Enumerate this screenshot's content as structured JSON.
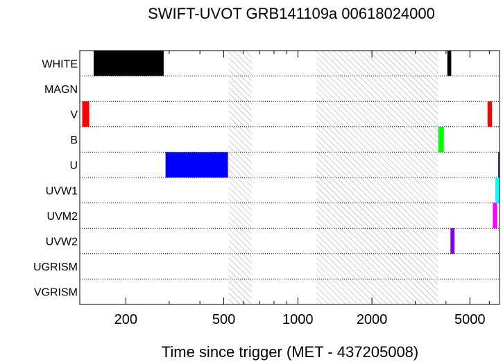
{
  "chart_data": {
    "type": "bar",
    "orientation": "horizontal-timeline",
    "title": "SWIFT-UVOT GRB141109a 00618024000",
    "xlabel": "Time since trigger (MET - 437205008)",
    "xscale": "log",
    "xlim": [
      130,
      6600
    ],
    "x_ticks": [
      {
        "value": 200,
        "label": "200"
      },
      {
        "value": 500,
        "label": "500"
      },
      {
        "value": 1000,
        "label": "1000"
      },
      {
        "value": 2000,
        "label": "2000"
      },
      {
        "value": 5000,
        "label": "5000"
      }
    ],
    "categories": [
      "WHITE",
      "MAGN",
      "V",
      "B",
      "U",
      "UVW1",
      "UVM2",
      "UVW2",
      "UGRISM",
      "VGRISM"
    ],
    "grid": "dotted row separators",
    "gaps": [
      {
        "start": 525,
        "end": 650
      },
      {
        "start": 1190,
        "end": 3720
      }
    ],
    "exposures": [
      {
        "filter": "WHITE",
        "start": 148,
        "end": 285,
        "color": "#000000"
      },
      {
        "filter": "WHITE",
        "start": 4050,
        "end": 4200,
        "color": "#000000"
      },
      {
        "filter": "V",
        "start": 133,
        "end": 142,
        "color": "#ff0000"
      },
      {
        "filter": "V",
        "start": 5900,
        "end": 6150,
        "color": "#ff0000"
      },
      {
        "filter": "B",
        "start": 3720,
        "end": 3920,
        "color": "#00ff00"
      },
      {
        "filter": "U",
        "start": 290,
        "end": 520,
        "color": "#0000ff"
      },
      {
        "filter": "U",
        "start": 6520,
        "end": 6600,
        "color": "#1a1060"
      },
      {
        "filter": "UVW1",
        "start": 6350,
        "end": 6600,
        "color": "#00ffff"
      },
      {
        "filter": "UVM2",
        "start": 6200,
        "end": 6450,
        "color": "#ff00ff"
      },
      {
        "filter": "UVW2",
        "start": 4170,
        "end": 4330,
        "color": "#8000ff"
      }
    ]
  }
}
